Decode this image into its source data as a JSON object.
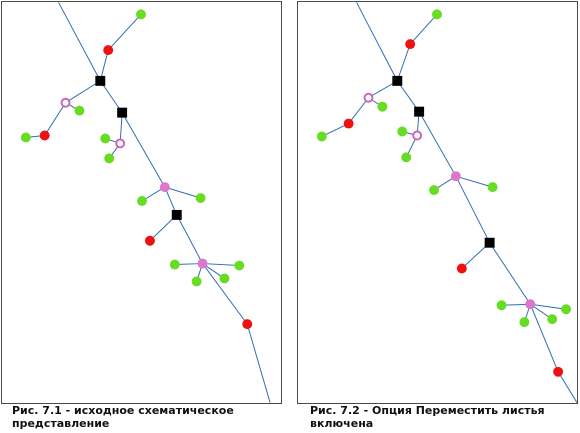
{
  "colors": {
    "edge": "#2f6db3",
    "junction": "#000000",
    "endpoint_red": "#ee1111",
    "endpoint_green": "#66dd22",
    "branch_pink": "#dd77cc",
    "hollow_stroke": "#cc66bb",
    "border": "#4a4a4a"
  },
  "figures": [
    {
      "caption": "Рис. 7.1 - исходное схематическое представление"
    },
    {
      "caption": "Рис. 7.2 - Опция Переместить листья включена"
    }
  ]
}
